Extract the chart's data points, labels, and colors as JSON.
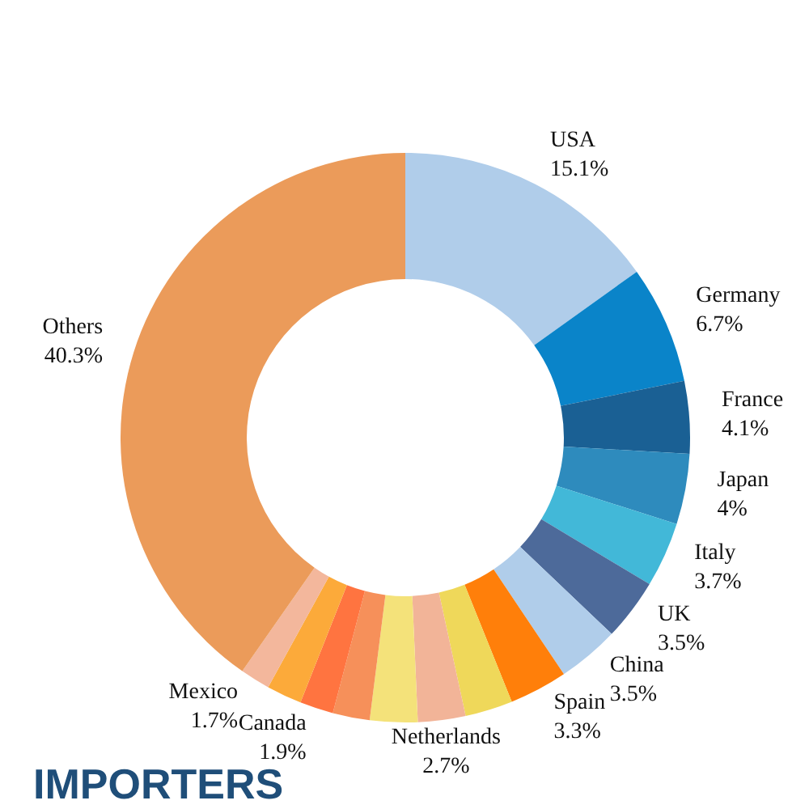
{
  "chart_data": {
    "type": "donut",
    "title": "IMPORTERS",
    "categories": [
      "USA",
      "Germany",
      "France",
      "Japan",
      "Italy",
      "UK",
      "China",
      "Spain",
      null,
      "Netherlands",
      null,
      null,
      "Canada",
      null,
      "Mexico",
      "Others"
    ],
    "values": [
      15.1,
      6.7,
      4.1,
      4,
      3.7,
      3.5,
      3.5,
      3.3,
      2.7,
      2.7,
      2.7,
      2.1,
      1.9,
      2.0,
      1.7,
      40.3
    ],
    "value_labels": [
      "15.1%",
      "6.7%",
      "4.1%",
      "4%",
      "3.7%",
      "3.5%",
      "3.5%",
      "3.3%",
      null,
      "2.7%",
      null,
      null,
      "1.9%",
      null,
      "1.7%",
      "40.3%"
    ],
    "colors": [
      "#b0cdea",
      "#0a84c9",
      "#1a6094",
      "#2e8bbd",
      "#42b8d8",
      "#4d6a9a",
      "#b0cdea",
      "#ff7f0a",
      "#efd85a",
      "#f2b498",
      "#f4e27a",
      "#f6905a",
      "#ff7440",
      "#fcaa3a",
      "#f3b79c",
      "#eb9b5a"
    ]
  }
}
